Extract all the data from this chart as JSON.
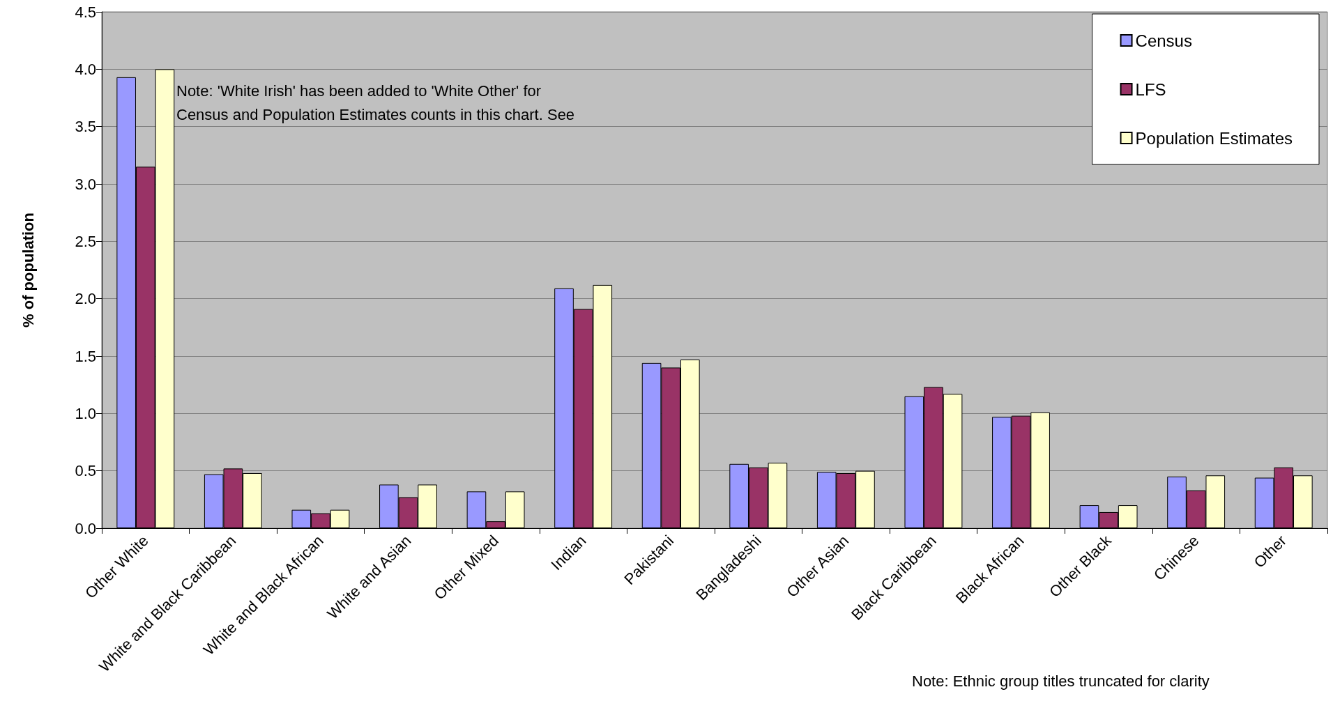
{
  "chart_data": {
    "type": "bar",
    "ylabel": "% of population",
    "categories": [
      "Other White",
      "White and Black Caribbean",
      "White and Black African",
      "White and Asian",
      "Other Mixed",
      "Indian",
      "Pakistani",
      "Bangladeshi",
      "Other Asian",
      "Black Caribbean",
      "Black African",
      "Other Black",
      "Chinese",
      "Other"
    ],
    "series": [
      {
        "name": "Census",
        "color": "#9999ff",
        "values": [
          3.93,
          0.47,
          0.16,
          0.38,
          0.32,
          2.09,
          1.44,
          0.56,
          0.49,
          1.15,
          0.97,
          0.2,
          0.45,
          0.44
        ]
      },
      {
        "name": "LFS",
        "color": "#993366",
        "values": [
          3.15,
          0.52,
          0.13,
          0.27,
          0.06,
          1.91,
          1.4,
          0.53,
          0.48,
          1.23,
          0.98,
          0.14,
          0.33,
          0.53
        ]
      },
      {
        "name": "Population Estimates",
        "color": "#ffffcc",
        "values": [
          4.0,
          0.48,
          0.16,
          0.38,
          0.32,
          2.12,
          1.47,
          0.57,
          0.5,
          1.17,
          1.01,
          0.2,
          0.46,
          0.46
        ]
      }
    ],
    "ylim": [
      0,
      4.5
    ],
    "yticks": [
      {
        "value": 0,
        "label": "0.0"
      },
      {
        "value": 0.5,
        "label": "0.5"
      },
      {
        "value": 1,
        "label": "1.0"
      },
      {
        "value": 1.5,
        "label": "1.5"
      },
      {
        "value": 2,
        "label": "2.0"
      },
      {
        "value": 2.5,
        "label": "2.5"
      },
      {
        "value": 3,
        "label": "3.0"
      },
      {
        "value": 3.5,
        "label": "3.5"
      },
      {
        "value": 4,
        "label": "4.0"
      },
      {
        "value": 4.5,
        "label": "4.5"
      }
    ],
    "grid": "y",
    "legend": "top right",
    "annotations": [
      "Note: 'White Irish' has been added to 'White Other' for\nCensus and Population Estimates counts in this chart. See",
      "Note: Ethnic group titles truncated for clarity"
    ]
  }
}
